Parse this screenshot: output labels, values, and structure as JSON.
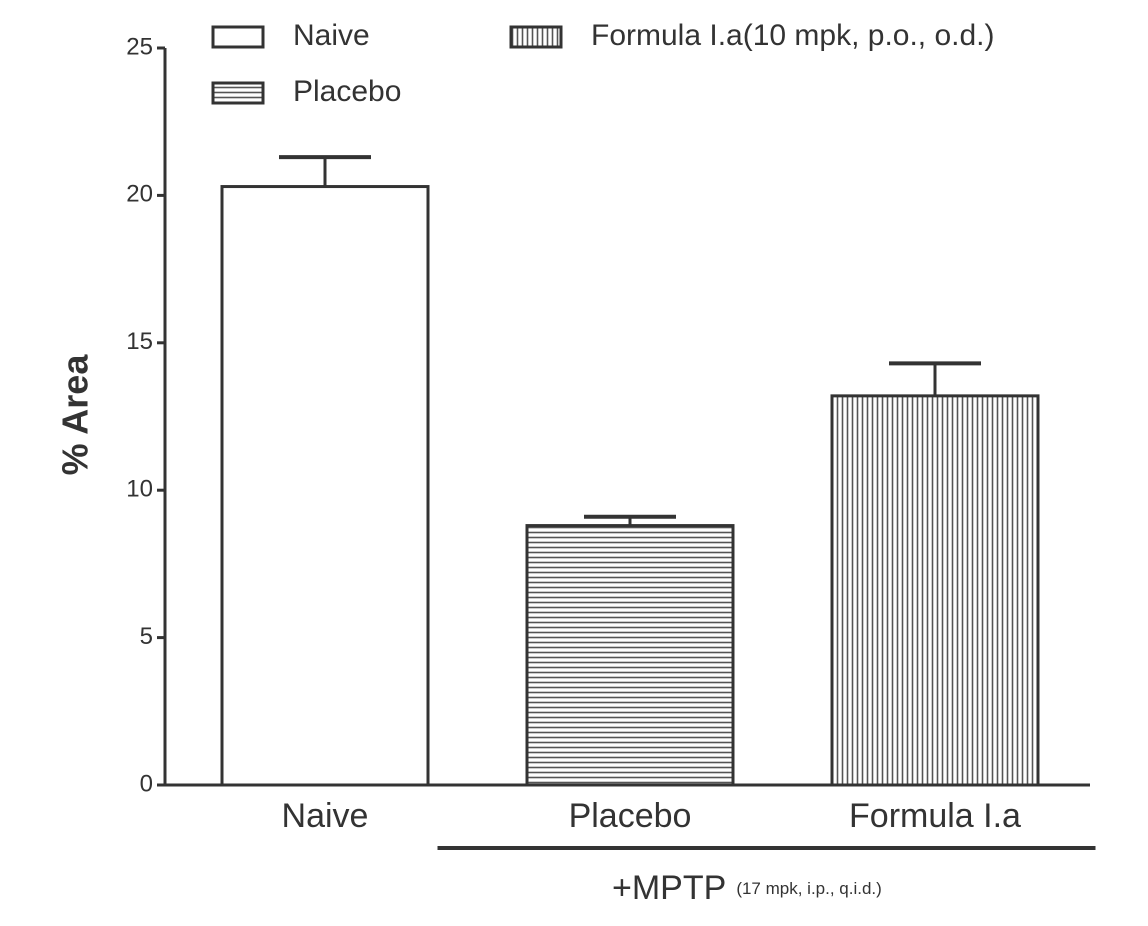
{
  "chart_data": {
    "type": "bar",
    "ylabel": "% Area",
    "categories": [
      "Naive",
      "Placebo",
      "Formula I.a"
    ],
    "values": [
      20.3,
      8.8,
      13.2
    ],
    "errors": [
      1.0,
      0.3,
      1.1
    ],
    "patterns": [
      "none",
      "horizontal",
      "vertical"
    ],
    "color": "#333333",
    "legend_labels": [
      "Naive",
      "Placebo",
      "Formula I.a(10 mpk, p.o., o.d.)"
    ],
    "annotation": "+MPTP",
    "annotation_note": "(17 mpk, i.p., q.i.d.)",
    "ylim": [
      0,
      25
    ],
    "yticks": [
      0,
      5,
      10,
      15,
      20,
      25
    ],
    "grid": false
  }
}
